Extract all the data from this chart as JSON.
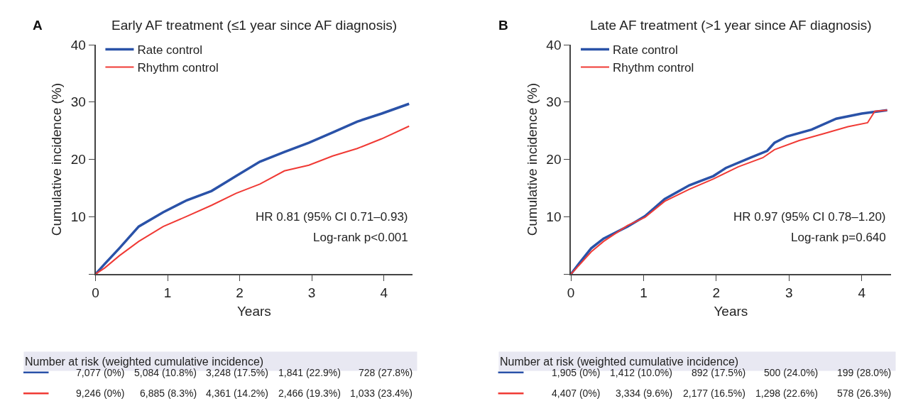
{
  "chart_data": [
    {
      "type": "line",
      "title": "Early AF treatment (≤1 year since AF diagnosis)",
      "xlabel": "Years",
      "ylabel": "Cumulative incidence (%)",
      "xlim": [
        0,
        4.4
      ],
      "xticks": [
        0,
        1,
        2,
        3,
        4
      ],
      "ylim": [
        0,
        40
      ],
      "yticks": [
        {
          "value": 0,
          "label": null
        },
        10,
        20,
        30,
        40
      ],
      "legend": "top left",
      "series": [
        {
          "name": "Rate control",
          "color": "#2a52a8",
          "x": [
            0,
            0.13,
            0.33,
            0.6,
            0.94,
            1.27,
            1.61,
            1.95,
            2.28,
            2.62,
            2.96,
            3.29,
            3.63,
            3.97,
            4.35
          ],
          "values": [
            0,
            1.8,
            4.5,
            8.3,
            10.8,
            12.9,
            14.5,
            17.1,
            19.6,
            21.3,
            22.9,
            24.7,
            26.6,
            28.0,
            29.7
          ]
        },
        {
          "name": "Rhythm control",
          "color": "#f03a35",
          "x": [
            0,
            0.13,
            0.33,
            0.6,
            0.94,
            1.27,
            1.61,
            1.95,
            2.28,
            2.62,
            2.96,
            3.29,
            3.63,
            3.97,
            4.35
          ],
          "values": [
            0,
            1.1,
            3.2,
            5.7,
            8.3,
            10.1,
            12.0,
            14.1,
            15.7,
            18.0,
            19.0,
            20.6,
            21.9,
            23.6,
            25.8
          ]
        }
      ],
      "annotations": [
        "A",
        "HR 0.81 (95% CI 0.71–0.93)",
        "Log-rank p<0.001",
        "Number at risk (weighted cumulative incidence)",
        "7,077 (0%)",
        "5,084 (10.8%)",
        "3,248 (17.5%)",
        "1,841 (22.9%)",
        "728 (27.8%)",
        "9,246 (0%)",
        "6,885 (8.3%)",
        "4,361 (14.2%)",
        "2,466 (19.3%)",
        "1,033 (23.4%)"
      ]
    },
    {
      "type": "line",
      "title": "Late AF treatment (>1 year since AF diagnosis)",
      "xlabel": "Years",
      "ylabel": "Cumulative incidence (%)",
      "xlim": [
        0,
        4.4
      ],
      "xticks": [
        0,
        1,
        2,
        3,
        4
      ],
      "ylim": [
        0,
        40
      ],
      "yticks": [
        {
          "value": 0,
          "label": null
        },
        10,
        20,
        30,
        40
      ],
      "legend": "top left",
      "series": [
        {
          "name": "Rate control",
          "color": "#2a52a8",
          "x": [
            0,
            0.11,
            0.28,
            0.45,
            0.78,
            1.02,
            1.29,
            1.63,
            1.96,
            2.13,
            2.47,
            2.7,
            2.8,
            2.97,
            3.31,
            3.65,
            4.0,
            4.35
          ],
          "values": [
            0,
            1.8,
            4.5,
            6.2,
            8.3,
            10.1,
            13.1,
            15.5,
            17.1,
            18.5,
            20.3,
            21.5,
            22.9,
            24.0,
            25.2,
            27.1,
            28.0,
            28.6
          ]
        },
        {
          "name": "Rhythm control",
          "color": "#f03a35",
          "x": [
            0,
            0.11,
            0.28,
            0.45,
            0.78,
            1.02,
            1.29,
            1.63,
            1.96,
            2.3,
            2.64,
            2.8,
            3.14,
            3.48,
            3.81,
            4.08,
            4.18,
            4.35
          ],
          "values": [
            0,
            1.5,
            3.9,
            5.7,
            8.5,
            9.9,
            12.7,
            14.8,
            16.6,
            18.7,
            20.3,
            21.7,
            23.3,
            24.5,
            25.7,
            26.4,
            28.4,
            28.6
          ]
        }
      ],
      "annotations": [
        "B",
        "HR 0.97 (95% CI 0.78–1.20)",
        "Log-rank p=0.640",
        "Number at risk (weighted cumulative incidence)",
        "1,905 (0%)",
        "1,412 (10.0%)",
        "892 (17.5%)",
        "500 (24.0%)",
        "199 (28.0%)",
        "4,407 (0%)",
        "3,334 (9.6%)",
        "2,177 (16.5%)",
        "1,298 (22.6%)",
        "578 (26.3%)"
      ]
    }
  ]
}
